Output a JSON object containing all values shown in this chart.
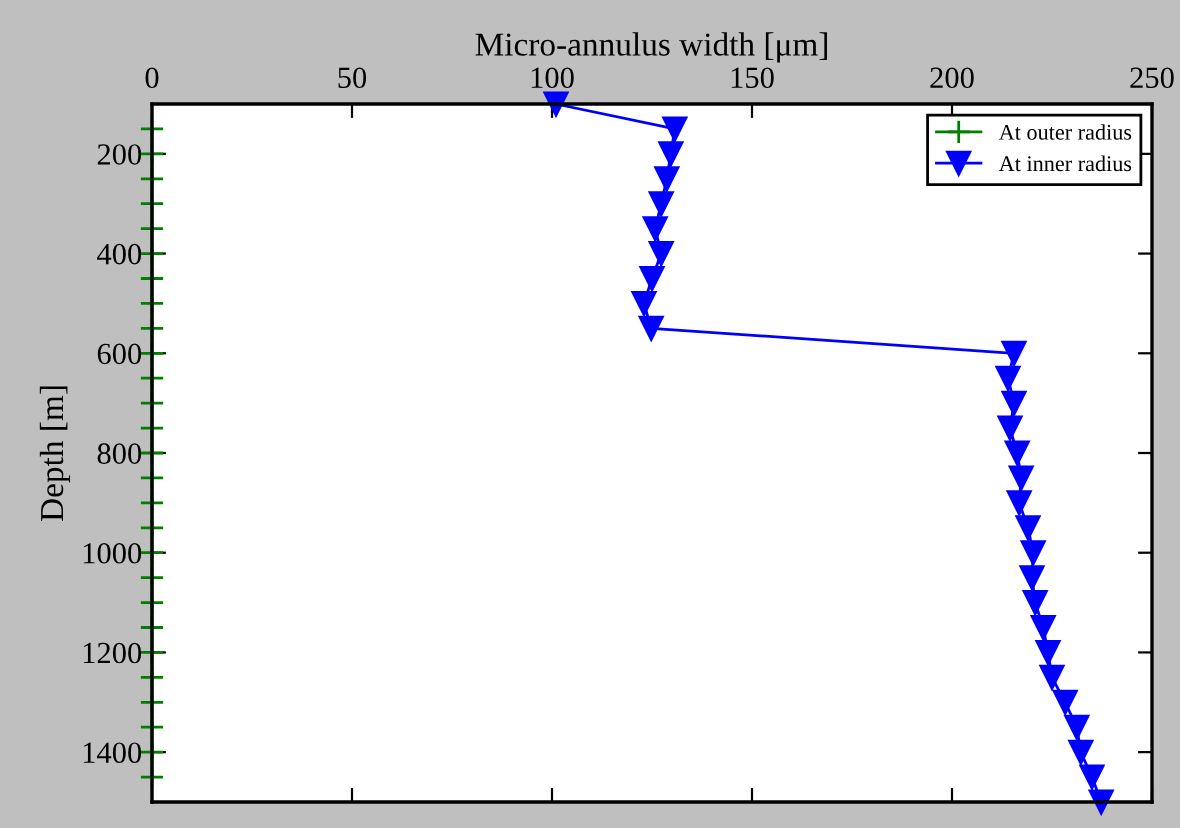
{
  "chart_data": {
    "type": "line",
    "xlabel": "Micro-annulus width [μm]",
    "ylabel": "Depth [m]",
    "xlim": [
      0,
      250
    ],
    "xticks": [
      0,
      50,
      100,
      150,
      200,
      250
    ],
    "ylim": [
      1500,
      100
    ],
    "yticks": [
      200,
      400,
      600,
      800,
      1000,
      1200,
      1400
    ],
    "grid": false,
    "legend": "top right",
    "series": [
      {
        "name": "At outer radius",
        "color": "#008000",
        "marker": "cross",
        "x": [
          0,
          0,
          0,
          0,
          0,
          0,
          0,
          0,
          0,
          0,
          0,
          0,
          0,
          0,
          0,
          0,
          0,
          0,
          0,
          0,
          0,
          0,
          0,
          0,
          0,
          0,
          0
        ],
        "values": [
          150,
          200,
          250,
          300,
          350,
          400,
          450,
          500,
          550,
          600,
          650,
          700,
          750,
          800,
          850,
          900,
          950,
          1000,
          1050,
          1100,
          1150,
          1200,
          1250,
          1300,
          1350,
          1400,
          1450
        ]
      },
      {
        "name": "At inner radius",
        "color": "#0000ff",
        "marker": "triangle",
        "x": [
          101,
          130.7,
          129.7,
          128.7,
          127.3,
          125.8,
          127.3,
          125,
          123,
          124.8,
          215.5,
          214,
          215.5,
          214.5,
          216.3,
          217.3,
          216.8,
          219,
          220.3,
          220,
          220.8,
          222.8,
          224,
          225,
          228.3,
          231.2,
          232.2,
          235,
          237.3
        ],
        "values": [
          100,
          150,
          200,
          250,
          300,
          350,
          400,
          450,
          500,
          550,
          600,
          650,
          700,
          750,
          800,
          850,
          900,
          950,
          1000,
          1050,
          1100,
          1150,
          1200,
          1250,
          1300,
          1350,
          1400,
          1450,
          1500
        ]
      }
    ]
  }
}
